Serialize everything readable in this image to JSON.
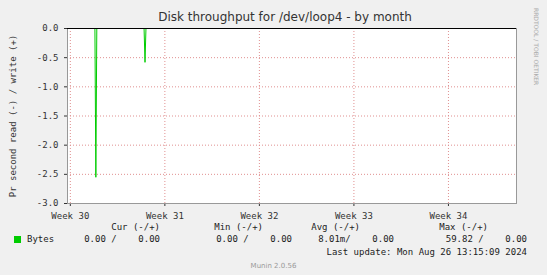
{
  "chart_data": {
    "type": "line",
    "title": "Disk throughput for /dev/loop4 - by month",
    "y_label": "Pr second read (-) / write (+)",
    "x": [
      29.97,
      30.26,
      30.27,
      30.28,
      30.78,
      30.79,
      30.8,
      34.72
    ],
    "series": [
      {
        "name": "Bytes",
        "color": "#00cc00",
        "values": [
          0,
          0,
          -2.55,
          0,
          0,
          -0.58,
          0,
          0
        ]
      }
    ],
    "xlim": [
      29.97,
      34.72
    ],
    "xticks": [
      {
        "value": 30,
        "label": "Week 30"
      },
      {
        "value": 31,
        "label": "Week 31"
      },
      {
        "value": 32,
        "label": "Week 32"
      },
      {
        "value": 33,
        "label": "Week 33"
      },
      {
        "value": 34,
        "label": "Week 34"
      }
    ],
    "ylim": [
      -3,
      0
    ],
    "yticks": [
      {
        "value": -3,
        "label": "-3.0"
      },
      -2.5,
      {
        "value": -2,
        "label": "-2.0"
      },
      -1.5,
      {
        "value": -1,
        "label": "-1.0"
      },
      -0.5,
      {
        "value": 0,
        "label": "0.0"
      }
    ],
    "grid": true
  },
  "legend_table": {
    "headers": [
      "Cur (-/+)",
      "Min (-/+)",
      "Avg (-/+)",
      "Max (-/+)"
    ],
    "rows": [
      [
        "Bytes",
        "0.00 /    0.00",
        "0.00 /    0.00",
        "8.01m/    0.00",
        "59.82 /    0.00"
      ]
    ]
  },
  "last_update": "Last update: Mon Aug 26 13:15:09 2024",
  "footer": "Munin 2.0.56",
  "side_text": "RRDTOOL / TOBI OETIKER"
}
